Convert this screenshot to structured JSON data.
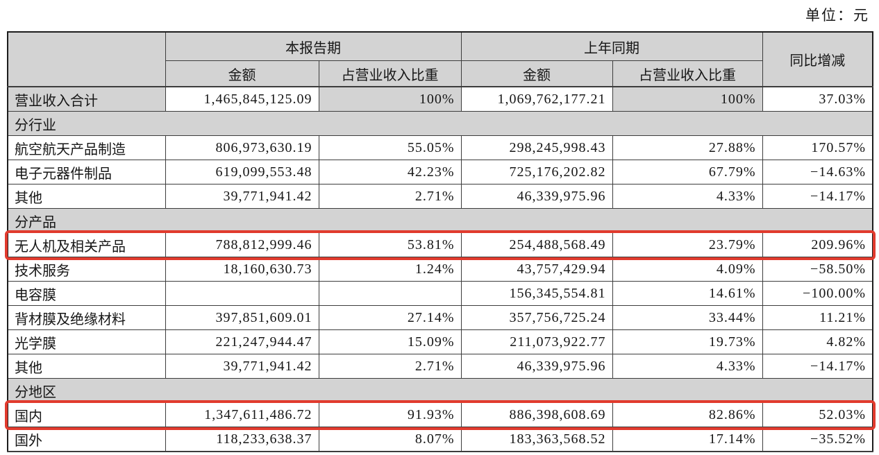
{
  "unit_label": "单位：元",
  "table": {
    "header": {
      "corner": "",
      "col_current": "本报告期",
      "col_prior": "上年同期",
      "col_yoy": "同比增减",
      "sub_amount": "金额",
      "sub_ratio": "占营业收入比重"
    },
    "rows": [
      {
        "type": "data",
        "label": "营业收入合计",
        "cells": [
          "1,465,845,125.09",
          "100%",
          "1,069,762,177.21",
          "100%",
          "37.03%"
        ],
        "shaded": true
      },
      {
        "type": "section",
        "label": "分行业"
      },
      {
        "type": "data",
        "label": "航空航天产品制造",
        "cells": [
          "806,973,630.19",
          "55.05%",
          "298,245,998.43",
          "27.88%",
          "170.57%"
        ]
      },
      {
        "type": "data",
        "label": "电子元器件制品",
        "cells": [
          "619,099,553.48",
          "42.23%",
          "725,176,202.82",
          "67.79%",
          "−14.63%"
        ]
      },
      {
        "type": "data",
        "label": "其他",
        "cells": [
          "39,771,941.42",
          "2.71%",
          "46,339,975.96",
          "4.33%",
          "−14.17%"
        ]
      },
      {
        "type": "section",
        "label": "分产品"
      },
      {
        "type": "data",
        "label": "无人机及相关产品",
        "cells": [
          "788,812,999.46",
          "53.81%",
          "254,488,568.49",
          "23.79%",
          "209.96%"
        ],
        "highlight": true
      },
      {
        "type": "data",
        "label": "技术服务",
        "cells": [
          "18,160,630.73",
          "1.24%",
          "43,757,429.94",
          "4.09%",
          "−58.50%"
        ]
      },
      {
        "type": "data",
        "label": "电容膜",
        "cells": [
          "",
          "",
          "156,345,554.81",
          "14.61%",
          "−100.00%"
        ]
      },
      {
        "type": "data",
        "label": "背材膜及绝缘材料",
        "cells": [
          "397,851,609.01",
          "27.14%",
          "357,756,725.24",
          "33.44%",
          "11.21%"
        ]
      },
      {
        "type": "data",
        "label": "光学膜",
        "cells": [
          "221,247,944.47",
          "15.09%",
          "211,073,922.77",
          "19.73%",
          "4.82%"
        ]
      },
      {
        "type": "data",
        "label": "其他",
        "cells": [
          "39,771,941.42",
          "2.71%",
          "46,339,975.96",
          "4.33%",
          "−14.17%"
        ]
      },
      {
        "type": "section",
        "label": "分地区"
      },
      {
        "type": "data",
        "label": "国内",
        "cells": [
          "1,347,611,486.72",
          "91.93%",
          "886,398,608.69",
          "82.86%",
          "52.03%"
        ],
        "highlight": true
      },
      {
        "type": "data",
        "label": "国外",
        "cells": [
          "118,233,638.37",
          "8.07%",
          "183,363,568.52",
          "17.14%",
          "−35.52%"
        ]
      }
    ],
    "colors": {
      "shaded_bg": "#d3d3d3",
      "highlight_border": "#e13b2e",
      "border_color": "#3c3c3c"
    }
  }
}
